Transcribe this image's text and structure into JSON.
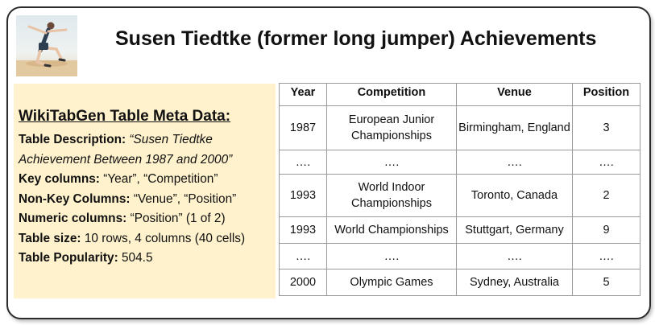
{
  "title": "Susen Tiedtke (former long jumper) Achievements",
  "meta": {
    "heading": "WikiTabGen Table Meta Data:",
    "description_label": "Table Description:",
    "description_line1": "“Susen Tiedtke",
    "description_line2": "Achievement Between 1987 and 2000”",
    "key_columns_label": "Key columns:",
    "key_columns_value": "“Year”, “Competition”",
    "nonkey_columns_label": "Non-Key Columns:",
    "nonkey_columns_value": "“Venue”, “Position”",
    "numeric_columns_label": "Numeric columns:",
    "numeric_columns_value": "“Position” (1 of 2)",
    "table_size_label": "Table size:",
    "table_size_value": "10 rows, 4 columns (40 cells)",
    "popularity_label": "Table Popularity:",
    "popularity_value": "504.5"
  },
  "table": {
    "headers": [
      "Year",
      "Competition",
      "Venue",
      "Position"
    ],
    "rows": [
      [
        "1987",
        "European Junior Championships",
        "Birmingham, England",
        "3"
      ],
      [
        "….",
        "….",
        "….",
        "…."
      ],
      [
        "1993",
        "World Indoor Championships",
        "Toronto, Canada",
        "2"
      ],
      [
        "1993",
        "World Championships",
        "Stuttgart, Germany",
        "9"
      ],
      [
        "….",
        "….",
        "….",
        "…."
      ],
      [
        "2000",
        "Olympic Games",
        "Sydney, Australia",
        "5"
      ]
    ]
  },
  "icons": {
    "thumbnail": "long-jumper-illustration"
  }
}
